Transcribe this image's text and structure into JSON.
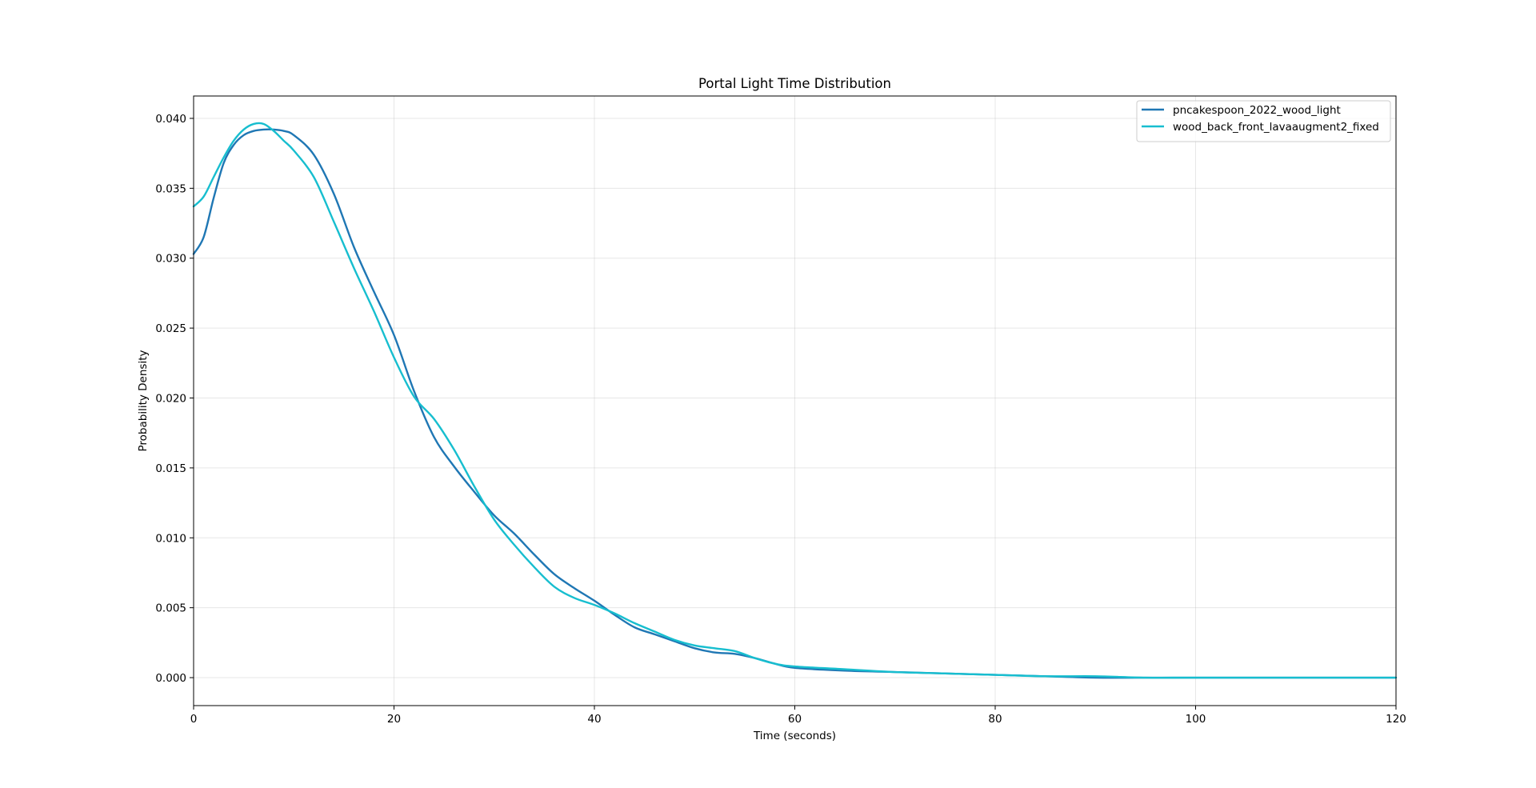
{
  "chart_data": {
    "type": "line",
    "title": "Portal Light Time Distribution",
    "xlabel": "Time (seconds)",
    "ylabel": "Probability Density",
    "xlim": [
      0,
      120
    ],
    "ylim": [
      -0.002,
      0.0416
    ],
    "xticks": [
      0,
      20,
      40,
      60,
      80,
      100,
      120
    ],
    "xtick_labels": [
      "0",
      "20",
      "40",
      "60",
      "80",
      "100",
      "120"
    ],
    "yticks": [
      0.0,
      0.005,
      0.01,
      0.015,
      0.02,
      0.025,
      0.03,
      0.035,
      0.04
    ],
    "ytick_labels": [
      "0.000",
      "0.005",
      "0.010",
      "0.015",
      "0.020",
      "0.025",
      "0.030",
      "0.035",
      "0.040"
    ],
    "grid": true,
    "legend_position": "top-right",
    "series": [
      {
        "name": "pncakespoon_2022_wood_light",
        "color": "#1f77b4",
        "x": [
          0,
          1,
          2,
          3,
          4,
          5,
          6,
          7,
          8,
          9,
          10,
          12,
          14,
          16,
          18,
          20,
          22,
          24,
          26,
          28,
          30,
          32,
          34,
          36,
          38,
          40,
          42,
          44,
          46,
          48,
          50,
          52,
          54,
          56,
          58,
          60,
          65,
          70,
          75,
          80,
          85,
          90,
          95,
          100,
          110,
          120
        ],
        "y": [
          0.0303,
          0.0315,
          0.0343,
          0.0368,
          0.0381,
          0.0388,
          0.0391,
          0.0392,
          0.0392,
          0.0391,
          0.0388,
          0.0374,
          0.0346,
          0.0308,
          0.0276,
          0.0245,
          0.0205,
          0.0172,
          0.0151,
          0.0133,
          0.0116,
          0.0103,
          0.0088,
          0.0074,
          0.0064,
          0.0055,
          0.0045,
          0.0036,
          0.0031,
          0.0026,
          0.0021,
          0.0018,
          0.0017,
          0.0014,
          0.001,
          0.0007,
          0.0005,
          0.0004,
          0.0003,
          0.0002,
          0.0001,
          0.0,
          0.0,
          0.0,
          0.0,
          0.0
        ]
      },
      {
        "name": "wood_back_front_lavaaugment2_fixed",
        "color": "#17becf",
        "x": [
          0,
          1,
          2,
          3,
          4,
          5,
          6,
          7,
          8,
          9,
          10,
          12,
          14,
          16,
          18,
          20,
          22,
          24,
          26,
          28,
          30,
          32,
          34,
          36,
          38,
          40,
          42,
          44,
          46,
          48,
          50,
          52,
          54,
          56,
          58,
          60,
          65,
          70,
          75,
          80,
          85,
          90,
          95,
          100,
          110,
          120
        ],
        "y": [
          0.0337,
          0.0344,
          0.0358,
          0.0372,
          0.0384,
          0.0392,
          0.0396,
          0.0396,
          0.0391,
          0.0384,
          0.0377,
          0.0358,
          0.0326,
          0.0293,
          0.0262,
          0.0229,
          0.0201,
          0.0185,
          0.0163,
          0.0137,
          0.0113,
          0.0095,
          0.0079,
          0.0065,
          0.0057,
          0.0052,
          0.0046,
          0.0039,
          0.0033,
          0.0027,
          0.0023,
          0.0021,
          0.0019,
          0.0014,
          0.001,
          0.0008,
          0.0006,
          0.0004,
          0.0003,
          0.0002,
          0.0001,
          0.0001,
          0.0,
          0.0,
          0.0,
          0.0
        ]
      }
    ]
  }
}
